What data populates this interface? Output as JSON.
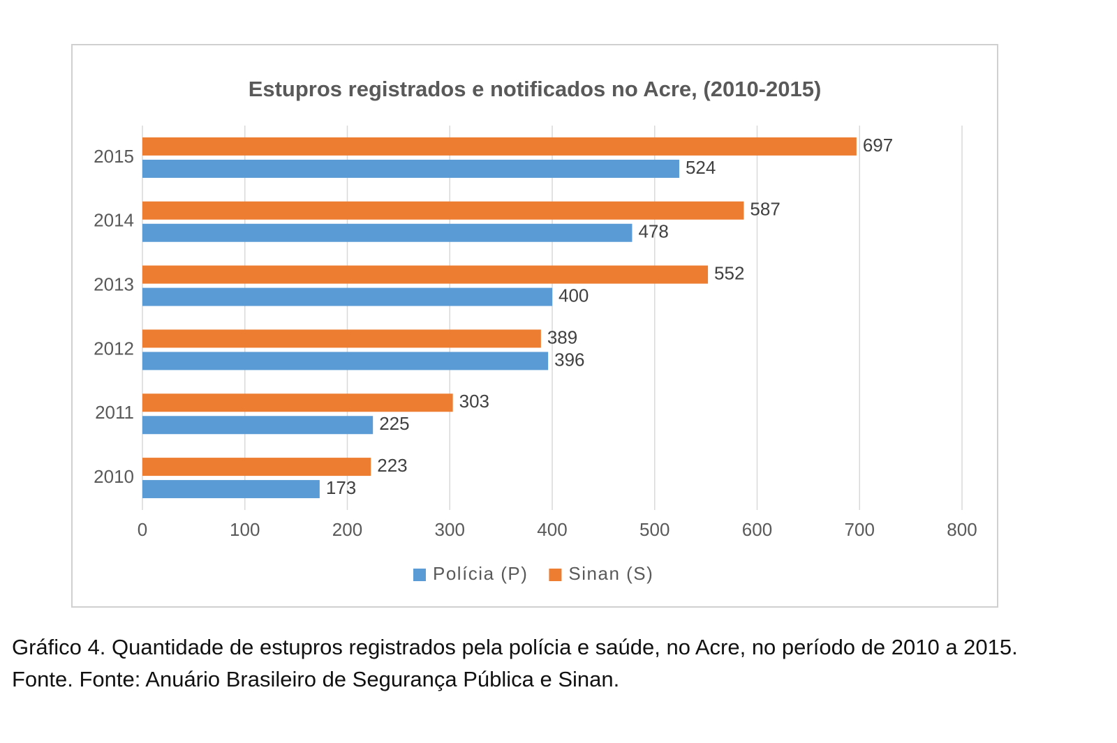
{
  "chart_data": {
    "type": "hbar",
    "title": "Estupros registrados e notificados no Acre, (2010-2015)",
    "categories": [
      "2010",
      "2011",
      "2012",
      "2013",
      "2014",
      "2015"
    ],
    "series": [
      {
        "name": "Polícia (P)",
        "color": "#5b9bd5",
        "values": [
          173,
          225,
          396,
          400,
          478,
          524
        ]
      },
      {
        "name": "Sinan (S)",
        "color": "#ed7d31",
        "values": [
          223,
          303,
          389,
          552,
          587,
          697
        ]
      }
    ],
    "xlim": [
      0,
      800
    ],
    "xticks": [
      0,
      100,
      200,
      300,
      400,
      500,
      600,
      700,
      800
    ],
    "grid": true,
    "legend": "bottom"
  },
  "caption": {
    "text": "Gráfico 4. Quantidade de estupros registrados pela polícia e saúde, no Acre, no período de 2010 a 2015.",
    "source": "Fonte. Fonte: Anuário Brasileiro de Segurança Pública e Sinan."
  }
}
